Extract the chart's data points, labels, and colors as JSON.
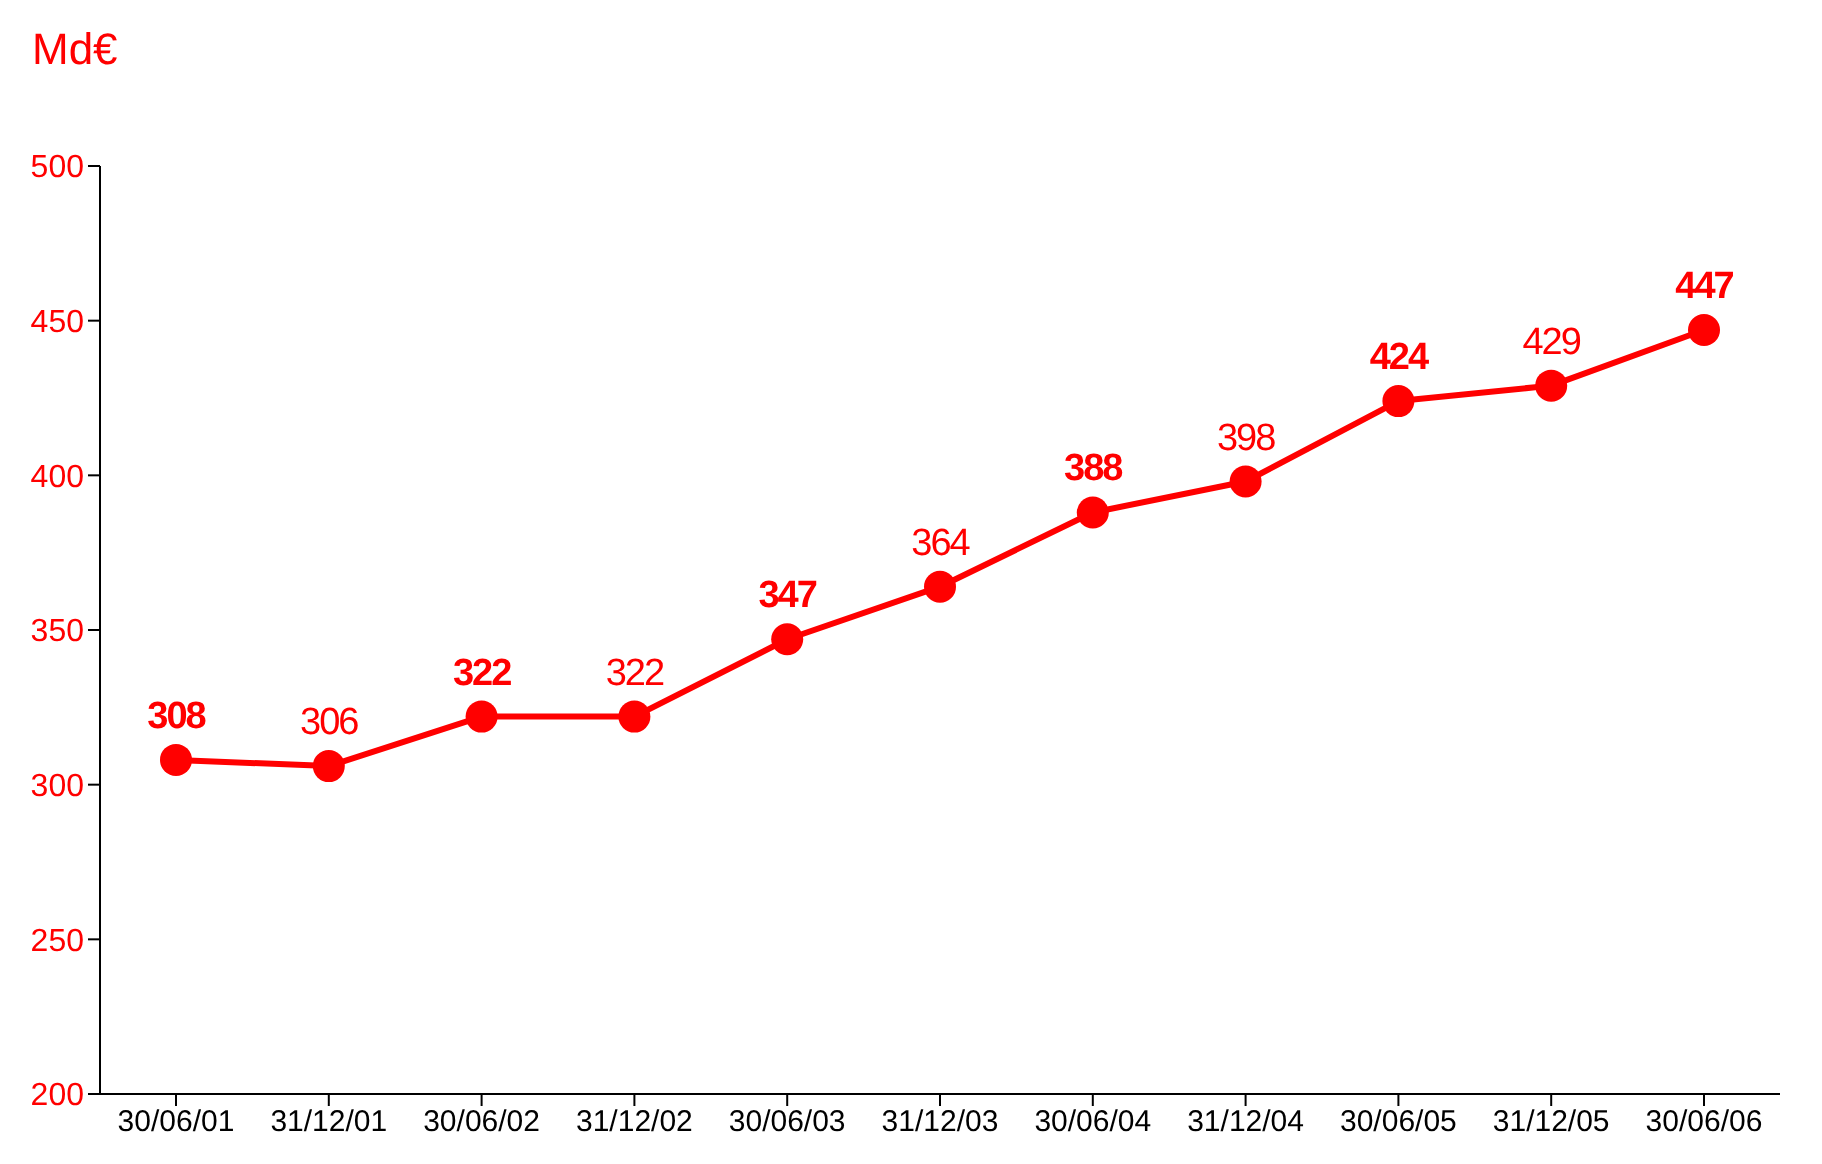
{
  "chart_data": {
    "type": "line",
    "ylabel": "Md€",
    "categories": [
      "30/06/01",
      "31/12/01",
      "30/06/02",
      "31/12/02",
      "30/06/03",
      "31/12/03",
      "30/06/04",
      "31/12/04",
      "30/06/05",
      "31/12/05",
      "30/06/06"
    ],
    "series": [
      {
        "color": "#ff0000",
        "values": [
          308,
          306,
          322,
          322,
          347,
          364,
          388,
          398,
          424,
          429,
          447
        ]
      }
    ],
    "ylim": [
      200,
      500
    ],
    "yticks": [
      200,
      250,
      300,
      350,
      400,
      450,
      500
    ],
    "grid": false,
    "legend": false,
    "marker": "circle",
    "line_style": "solid",
    "data_labels": true
  }
}
